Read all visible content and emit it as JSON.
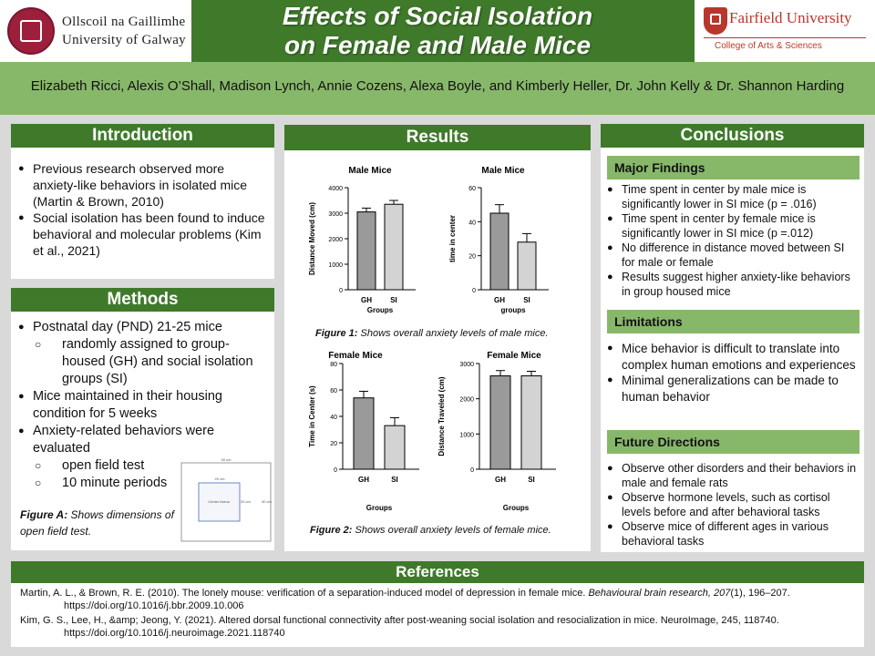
{
  "header": {
    "title_line1": "Effects of Social Isolation",
    "title_line2": "on Female and Male Mice",
    "galway_line1": "Ollscoil na Gaillimhe",
    "galway_line2": "University of Galway",
    "fairfield_name": "Fairfield University",
    "fairfield_sub": "College of Arts & Sciences",
    "colors": {
      "primary_green": "#3f7a2a",
      "light_green": "#87b86a",
      "galway_red": "#9c1f3b",
      "fairfield_red": "#b8362c"
    }
  },
  "authors": "Elizabeth Ricci, Alexis O’Shall, Madison Lynch, Annie Cozens, Alexa Boyle, and Kimberly Heller, Dr. John Kelly & Dr. Shannon Harding",
  "introduction": {
    "heading": "Introduction",
    "bullets": [
      "Previous research observed more anxiety-like behaviors in isolated mice (Martin & Brown, 2010)",
      "Social isolation has been found to induce behavioral and molecular problems (Kim et al., 2021)"
    ]
  },
  "methods": {
    "heading": "Methods",
    "items": [
      "Postnatal day (PND) 21-25 mice",
      "randomly assigned to group-housed (GH)  and social isolation groups (SI)",
      "Mice maintained in their housing condition for 5 weeks",
      "Anxiety-related behaviors were evaluated",
      "open field test",
      "10 minute periods"
    ],
    "figure_label": "Figure A:",
    "figure_caption": " Shows dimensions of open field test.",
    "diagram": {
      "outer": "40 cm",
      "inner": "20 cm",
      "inner_side": "20 cm",
      "outer_side": "40 cm",
      "center": "Center Arena"
    }
  },
  "results": {
    "heading": "Results",
    "fig1_label": "Figure 1:",
    "fig1_caption": " Shows overall anxiety levels of male mice.",
    "fig2_label": "Figure 2:",
    "fig2_caption": " Shows overall anxiety levels of female  mice."
  },
  "chart_data": [
    {
      "type": "bar",
      "title": "Male Mice",
      "categories": [
        "GH",
        "SI"
      ],
      "values": [
        3050,
        3350
      ],
      "errors": [
        150,
        150
      ],
      "xlabel": "Groups",
      "ylabel": "Distance Moved (cm)",
      "ylim": [
        0,
        4000
      ],
      "yticks": [
        "0",
        "1000",
        "2000",
        "3000",
        "4000"
      ]
    },
    {
      "type": "bar",
      "title": "Male Mice",
      "categories": [
        "GH",
        "SI"
      ],
      "values": [
        45,
        28
      ],
      "errors": [
        5,
        5
      ],
      "xlabel": "groups",
      "ylabel": "time in center",
      "ylim": [
        0,
        60
      ],
      "yticks": [
        "0",
        "20",
        "40",
        "60"
      ]
    },
    {
      "type": "bar",
      "title": "Female Mice",
      "categories": [
        "GH",
        "SI"
      ],
      "values": [
        54,
        33
      ],
      "errors": [
        5,
        6
      ],
      "xlabel": "Groups",
      "ylabel": "Time in Center (s)",
      "ylim": [
        0,
        80
      ],
      "yticks": [
        "0",
        "20",
        "40",
        "60",
        "80"
      ]
    },
    {
      "type": "bar",
      "title": "Female Mice",
      "categories": [
        "GH",
        "SI"
      ],
      "values": [
        2650,
        2650
      ],
      "errors": [
        150,
        130
      ],
      "xlabel": "Groups",
      "ylabel": "Distance Traveled (cm)",
      "ylim": [
        0,
        3000
      ],
      "yticks": [
        "0",
        "1000",
        "2000",
        "3000"
      ]
    }
  ],
  "conclusions": {
    "heading": "Conclusions",
    "major_heading": "Major Findings",
    "major": [
      "Time spent in center by male mice is significantly lower in SI mice  (p = .016)",
      "Time spent in center by female mice is significantly lower in SI mice (p =.012)",
      "No difference in distance moved between SI for male or female",
      "Results suggest higher anxiety-like behaviors in group housed mice"
    ],
    "limitations_heading": "Limitations",
    "limitations": [
      "Mice behavior is difficult to translate into complex human emotions and experiences",
      "Minimal generalizations can be made to human behavior"
    ],
    "future_heading": "Future Directions",
    "future": [
      "Observe other disorders and their behaviors in male and female rats",
      "Observe hormone levels, such as cortisol levels before and after behavioral tasks",
      "Observe mice of different ages in various behavioral tasks"
    ]
  },
  "references": {
    "heading": "References",
    "ref1_text": "Martin, A. L., & Brown, R. E. (2010). The lonely mouse: verification of a separation-induced model of depression in female mice. ",
    "ref1_journal": "Behavioural brain research",
    "ref1_vol": ", 207",
    "ref1_tail": "(1), 196–207. https://doi.org/10.1016/j.bbr.2009.10.006",
    "ref2": "Kim, G. S., Lee, H., &amp; Jeong, Y. (2021). Altered  dorsal functional connectivity after post-weaning social isolation and resocialization in mice. NeuroImage, 245, 118740. https://doi.org/10.1016/j.neuroimage.2021.118740"
  }
}
